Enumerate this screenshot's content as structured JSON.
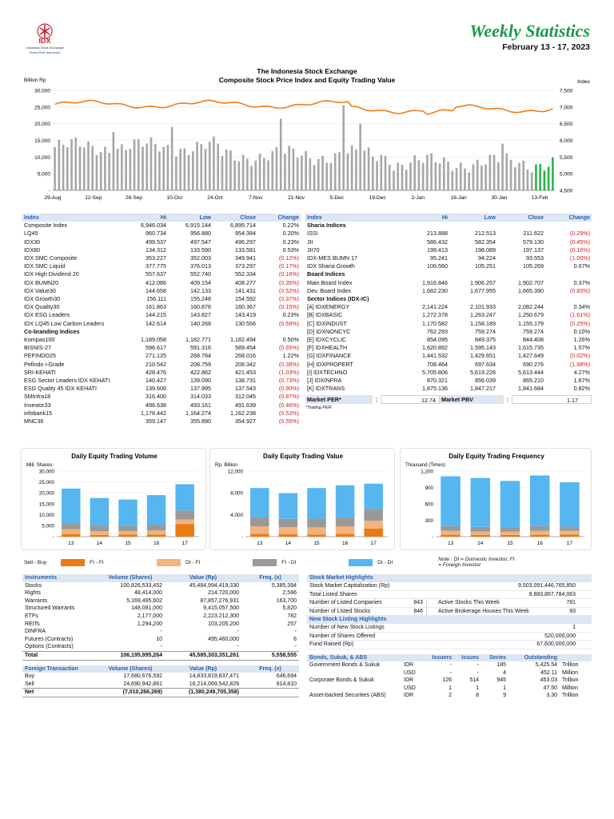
{
  "header": {
    "brand_name": "IDX",
    "brand_sub": "Indonesia Stock Exchange",
    "brand_tag": "Bursa Efek Indonesia",
    "title": "Weekly Statistics",
    "period": "February 13 - 17, 2023"
  },
  "main_chart": {
    "title1": "The Indonesia Stock Exchange",
    "title2": "Composite Stock Price Index and Equity Trading Value",
    "left_label": "Billion Rp",
    "right_label": "Index",
    "left_ticks": [
      "30,000",
      "25,000",
      "20,000",
      "15,000",
      "10,000",
      "5,000",
      "-"
    ],
    "right_ticks": [
      "7,500",
      "7,000",
      "6,500",
      "6,000",
      "5,500",
      "5,000",
      "4,500"
    ],
    "x_ticks": [
      "29-Aug",
      "12-Sep",
      "26-Sep",
      "10-Oct",
      "24-Oct",
      "7-Nov",
      "21-Nov",
      "5-Dec",
      "19-Dec",
      "2-Jan",
      "16-Jan",
      "30-Jan",
      "13-Feb"
    ],
    "colors": {
      "bars": "#a6a6a6",
      "recent": "#2bb34a",
      "index": "#f07d1a"
    }
  },
  "chart_data": [
    {
      "type": "bar",
      "title": "Daily Equity Trading Volume",
      "ylabel": "Mill. Shares",
      "categories": [
        "13",
        "14",
        "15",
        "16",
        "17"
      ],
      "ylim": [
        0,
        30000
      ],
      "yticks": [
        "30,000",
        "25,000",
        "20,000",
        "15,000",
        "10,000",
        "5,000",
        "-"
      ],
      "stacked": true,
      "series": [
        {
          "name": "FI - FI",
          "values": [
            1200,
            800,
            900,
            1000,
            5800
          ]
        },
        {
          "name": "DI - FI",
          "values": [
            2200,
            1700,
            1600,
            1800,
            2000
          ]
        },
        {
          "name": "FI - DI",
          "values": [
            2800,
            2600,
            2500,
            2700,
            4200
          ]
        },
        {
          "name": "DI - DI",
          "values": [
            15800,
            12600,
            12000,
            13500,
            12000
          ]
        }
      ]
    },
    {
      "type": "bar",
      "title": "Daily Equity Trading Value",
      "ylabel": "Rp. Billion",
      "categories": [
        "13",
        "14",
        "15",
        "16",
        "17"
      ],
      "ylim": [
        0,
        12000
      ],
      "yticks": [
        "12,000",
        "8,000",
        "4,000",
        "-"
      ],
      "stacked": true,
      "series": [
        {
          "name": "FI - FI",
          "values": [
            500,
            450,
            400,
            500,
            1500
          ]
        },
        {
          "name": "DI - FI",
          "values": [
            1400,
            1300,
            1300,
            1400,
            1400
          ]
        },
        {
          "name": "FI - DI",
          "values": [
            1700,
            1500,
            1600,
            1700,
            2200
          ]
        },
        {
          "name": "DI - DI",
          "values": [
            5300,
            4700,
            5600,
            5800,
            4600
          ]
        }
      ]
    },
    {
      "type": "bar",
      "title": "Daily Equity Trading Frequency",
      "ylabel": "Thousand (Times)",
      "categories": [
        "13",
        "14",
        "15",
        "16",
        "17"
      ],
      "ylim": [
        0,
        1200
      ],
      "yticks": [
        "1,200",
        "900",
        "600",
        "300",
        "-"
      ],
      "stacked": true,
      "series": [
        {
          "name": "FI - FI",
          "values": [
            35,
            30,
            30,
            35,
            40
          ]
        },
        {
          "name": "DI - FI",
          "values": [
            70,
            65,
            60,
            70,
            65
          ]
        },
        {
          "name": "FI - DI",
          "values": [
            90,
            85,
            80,
            90,
            80
          ]
        },
        {
          "name": "DI - DI",
          "values": [
            910,
            895,
            850,
            925,
            810
          ]
        }
      ]
    }
  ],
  "legend": {
    "lead": "Sell - Buy",
    "items": [
      {
        "label": "FI - FI",
        "color": "#ea7b12"
      },
      {
        "label": "DI - FI",
        "color": "#f2b37d"
      },
      {
        "label": "FI - DI",
        "color": "#999999"
      },
      {
        "label": "DI - DI",
        "color": "#56b6f0"
      }
    ],
    "note": "Note : DI = Domestic Investor, FI = Foreign Investor",
    "colors": [
      "#ea7b12",
      "#f2b37d",
      "#999999",
      "#56b6f0"
    ]
  },
  "left_table": {
    "headers": [
      "Index",
      "Hi",
      "Low",
      "Close",
      "Change"
    ],
    "rows": [
      {
        "name": "Composite Index",
        "hi": "6,946.034",
        "low": "6,915.144",
        "close": "6,895.714",
        "chg": "0.22%",
        "neg": false
      },
      {
        "name": "LQ45",
        "hi": "960.734",
        "low": "956.880",
        "close": "954.384",
        "chg": "0.20%",
        "neg": false
      },
      {
        "name": "IDX30",
        "hi": "499.537",
        "low": "497.547",
        "close": "496.297",
        "chg": "0.23%",
        "neg": false
      },
      {
        "name": "IDX80",
        "hi": "134.312",
        "low": "133.590",
        "close": "133.581",
        "chg": "0.53%",
        "neg": false
      },
      {
        "name": "IDX SMC Composite",
        "hi": "353.227",
        "low": "352.003",
        "close": "349.941",
        "chg": "(0.12%)",
        "neg": true
      },
      {
        "name": "IDX SMC Liquid",
        "hi": "377.775",
        "low": "376.013",
        "close": "373.297",
        "chg": "(0.17%)",
        "neg": true
      },
      {
        "name": "IDX High Dividend 20",
        "hi": "557.637",
        "low": "552.740",
        "close": "552.334",
        "chg": "(0.16%)",
        "neg": true
      },
      {
        "name": "IDX BUMN20",
        "hi": "412.086",
        "low": "409.154",
        "close": "408.277",
        "chg": "(0.35%)",
        "neg": true
      },
      {
        "name": "IDX Value30",
        "hi": "144.658",
        "low": "142.133",
        "close": "141.431",
        "chg": "(0.52%)",
        "neg": true
      },
      {
        "name": "IDX Growth30",
        "hi": "156.111",
        "low": "155.248",
        "close": "154.592",
        "chg": "(0.37%)",
        "neg": true
      },
      {
        "name": "IDX Quality30",
        "hi": "161.863",
        "low": "160.876",
        "close": "160.367",
        "chg": "(0.15%)",
        "neg": true
      },
      {
        "name": "IDX ESG Leaders",
        "hi": "144.215",
        "low": "143.827",
        "close": "143.419",
        "chg": "0.23%",
        "neg": false
      },
      {
        "name": "IDX LQ45 Low Carbon Leaders",
        "hi": "142.614",
        "low": "140.268",
        "close": "130.556",
        "chg": "(0.59%)",
        "neg": true
      },
      {
        "name": "Co-branding Indices",
        "group": true
      },
      {
        "name": "Kompas100",
        "hi": "1,189.058",
        "low": "1,182.771",
        "close": "1,182.494",
        "chg": "0.50%",
        "neg": false
      },
      {
        "name": "BISNIS-27",
        "hi": "596.617",
        "low": "591.316",
        "close": "589.454",
        "chg": "(0.65%)",
        "neg": true
      },
      {
        "name": "PEFINDO25",
        "hi": "271.125",
        "low": "268.784",
        "close": "268.016",
        "chg": "1.22%",
        "neg": false
      },
      {
        "name": "Pefindo i-Grade",
        "hi": "210.542",
        "low": "208.759",
        "close": "208.342",
        "chg": "(0.38%)",
        "neg": true
      },
      {
        "name": "SRI-KEHATI",
        "hi": "428.476",
        "low": "422.862",
        "close": "421.453",
        "chg": "(1.03%)",
        "neg": true
      },
      {
        "name": "ESG Sector Leaders IDX KEHATI",
        "hi": "140.427",
        "low": "139.090",
        "close": "138.731",
        "chg": "(0.73%)",
        "neg": true
      },
      {
        "name": "ESG Quality 45 IDX KEHATI",
        "hi": "139.606",
        "low": "137.995",
        "close": "137.543",
        "chg": "(0.90%)",
        "neg": true
      },
      {
        "name": "SMInfra18",
        "hi": "316.400",
        "low": "314.033",
        "close": "312.045",
        "chg": "(0.87%)",
        "neg": true
      },
      {
        "name": "Investor33",
        "hi": "496.638",
        "low": "493.161",
        "close": "491.639",
        "chg": "(0.46%)",
        "neg": true
      },
      {
        "name": "infobank15",
        "hi": "1,178.442",
        "low": "1,164.274",
        "close": "1,162.238",
        "chg": "(0.53%)",
        "neg": true
      },
      {
        "name": "MNC36",
        "hi": "359.147",
        "low": "355.890",
        "close": "354.927",
        "chg": "(0.55%)",
        "neg": true
      }
    ]
  },
  "right_table": {
    "headers": [
      "Index",
      "Hi",
      "Low",
      "Close",
      "Change"
    ],
    "rows": [
      {
        "name": "Sharia Indices",
        "group": true
      },
      {
        "name": "ISSI",
        "hi": "213.888",
        "low": "212.513",
        "close": "211.622",
        "chg": "(0.29%)",
        "neg": true
      },
      {
        "name": "JII",
        "hi": "586.432",
        "low": "582.354",
        "close": "579.130",
        "chg": "(0.45%)",
        "neg": true
      },
      {
        "name": "JII70",
        "hi": "199.413",
        "low": "198.089",
        "close": "197.137",
        "chg": "(0.16%)",
        "neg": true
      },
      {
        "name": "IDX-MES BUMN 17",
        "hi": "95.241",
        "low": "94.224",
        "close": "93.553",
        "chg": "(1.00%)",
        "neg": true
      },
      {
        "name": "IDX Sharia Growth",
        "hi": "106.560",
        "low": "105.251",
        "close": "105.269",
        "chg": "0.67%",
        "neg": false
      },
      {
        "name": "Board Indices",
        "group": true
      },
      {
        "name": "Main Board Index",
        "hi": "1,916.846",
        "low": "1,906.257",
        "close": "1,902.707",
        "chg": "0.37%",
        "neg": false
      },
      {
        "name": "Dev. Board Index",
        "hi": "1,682.230",
        "low": "1,677.955",
        "close": "1,665.390",
        "chg": "(0.83%)",
        "neg": true
      },
      {
        "name": "Sector Indices (IDX-IC)",
        "group": true
      },
      {
        "name": "[A] IDXENERGY",
        "hi": "2,141.224",
        "low": "2,101.933",
        "close": "2,082.244",
        "chg": "0.34%",
        "neg": false
      },
      {
        "name": "[B] IDXBASIC",
        "hi": "1,272.378",
        "low": "1,263.247",
        "close": "1,250.679",
        "chg": "(1.61%)",
        "neg": true
      },
      {
        "name": "[C] IDXINDUST",
        "hi": "1,170.582",
        "low": "1,158.189",
        "close": "1,155.179",
        "chg": "(0.25%)",
        "neg": true
      },
      {
        "name": "[D] IDXNONCYC",
        "hi": "762.293",
        "low": "759.274",
        "close": "759.274",
        "chg": "0.10%",
        "neg": false
      },
      {
        "name": "[E] IDXCYCLIC",
        "hi": "854.095",
        "low": "849.375",
        "close": "844.408",
        "chg": "1.26%",
        "neg": false
      },
      {
        "name": "[F] IDXHEALTH",
        "hi": "1,620.892",
        "low": "1,595.143",
        "close": "1,615.735",
        "chg": "1.57%",
        "neg": false
      },
      {
        "name": "[G] IDXFINANCE",
        "hi": "1,441.532",
        "low": "1,429.651",
        "close": "1,427.649",
        "chg": "(0.02%)",
        "neg": true
      },
      {
        "name": "[H] IDXPROPERT",
        "hi": "708.464",
        "low": "697.634",
        "close": "690.276",
        "chg": "(1.98%)",
        "neg": true
      },
      {
        "name": "[I] IDXTECHNO",
        "hi": "5,705.806",
        "low": "5,619.228",
        "close": "5,613.444",
        "chg": "4.27%",
        "neg": false
      },
      {
        "name": "[J] IDXINFRA",
        "hi": "870.321",
        "low": "856.039",
        "close": "865.210",
        "chg": "1.67%",
        "neg": false
      },
      {
        "name": "[K] IDXTRANS",
        "hi": "1,875.136",
        "low": "1,847.217",
        "close": "1,841.684",
        "chg": "0.82%",
        "neg": false
      }
    ],
    "per_label": "Market PER*",
    "per_value": "12.74",
    "pbv_label": "Market PBV",
    "pbv_value": "1.17",
    "colon": ":",
    "per_note": "*Trailing PER"
  },
  "instruments": {
    "headers": [
      "Instruments",
      "Volume (Shares)",
      "Value (Rp)",
      "Freq. (x)"
    ],
    "rows": [
      [
        "Stocks",
        "100,826,533,452",
        "45,484,994,419,330",
        "5,385,394"
      ],
      [
        "Rights",
        "48,414,000",
        "214,720,000",
        "2,596"
      ],
      [
        "Warrants",
        "5,169,495,602",
        "87,857,276,931",
        "163,700"
      ],
      [
        "Structured Warrants",
        "148,081,000",
        "9,415,057,500",
        "5,820"
      ],
      [
        "ETFs",
        "2,177,000",
        "2,223,212,300",
        "782"
      ],
      [
        "REITs",
        "1,294,200",
        "103,205,200",
        "257"
      ],
      [
        "DINFRA",
        "-",
        "-",
        "-"
      ],
      [
        "Futures (Contracts)",
        "10",
        "495,460,000",
        "6"
      ],
      [
        "Options (Contracts)",
        "-",
        "-",
        "-"
      ]
    ],
    "total": [
      "Total",
      "106,195,995,264",
      "45,585,303,351,261",
      "5,558,555"
    ]
  },
  "foreign": {
    "headers": [
      "Foreign Transaction",
      "Volume (Shares)",
      "Value (Rp)",
      "Freq. (x)"
    ],
    "rows": [
      [
        "Buy",
        "17,680,676,592",
        "14,833,819,837,471",
        "646,694"
      ],
      [
        "Sell",
        "24,690,942,861",
        "16,214,069,542,829",
        "814,810"
      ]
    ],
    "net": [
      "Net",
      "(7,010,266,269)",
      "(1,380,249,705,358)",
      ""
    ]
  },
  "highlights": {
    "header": "Stock Market Highlights",
    "cap_label": "Stock Market Capitalization (Rp)",
    "cap_value": "9,503,091,446,765,850",
    "shares_label": "Total Listed Shares",
    "shares_value": "9,883,867,784,063",
    "companies_label": "Number of Listed Companies",
    "companies_value": "843",
    "active_stocks_label": "Active Stocks This Week",
    "active_stocks_value": "781",
    "stocks_label": "Number of Listed Stocks",
    "stocks_value": "846",
    "houses_label": "Active Brokerage Houses This Week",
    "houses_value": "93",
    "new_header": "New Stock Listing Highlights",
    "new_listings_label": "Number of New Stock Listings",
    "new_listings_value": "1",
    "offered_label": "Number of Shares Offered",
    "offered_value": "520,000,000",
    "fund_label": "Fund Raised (Rp)",
    "fund_value": "67,600,000,000"
  },
  "bonds": {
    "headers": [
      "Bonds, Sukuk, & ABS",
      "",
      "Issuers",
      "Issues",
      "Series",
      "Outstanding",
      ""
    ],
    "rows": [
      [
        "Government Bonds & Sukuk",
        "IDR",
        "-",
        "-",
        "185",
        "5,425.54",
        "Trillion"
      ],
      [
        "",
        "USD",
        "-",
        "-",
        "4",
        "452.11",
        "Million"
      ],
      [
        "Corporate Bonds & Sukuk",
        "IDR",
        "126",
        "514",
        "945",
        "453.03",
        "Trillion"
      ],
      [
        "",
        "USD",
        "1",
        "1",
        "1",
        "47.50",
        "Million"
      ],
      [
        "Asset-backed Securities (ABS)",
        "IDR",
        "2",
        "8",
        "9",
        "3.30",
        "Trillion"
      ]
    ]
  }
}
